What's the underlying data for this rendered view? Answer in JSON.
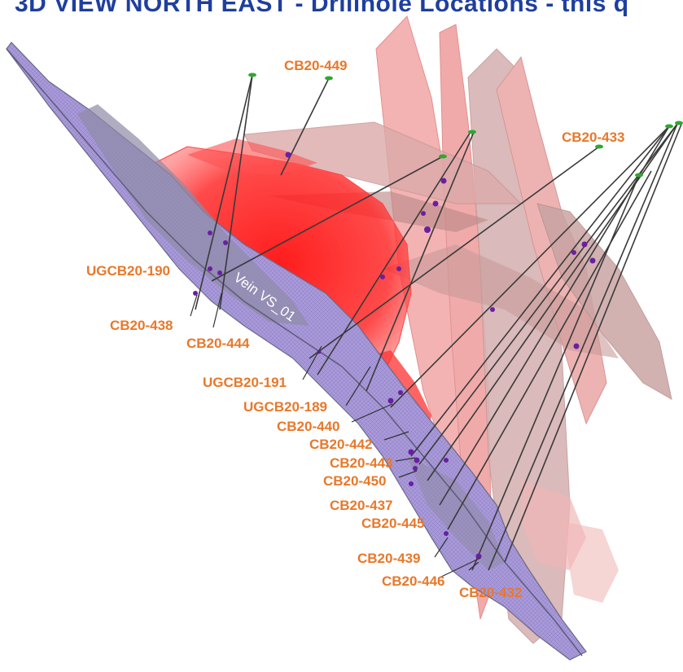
{
  "title": "3D VIEW NORTH EAST - Drillhole Locations - this q",
  "colors": {
    "title": "#1f3f9e",
    "label": "#e8782a",
    "vein_fill": "#a896d8",
    "vein_edge": "#6b6a86",
    "ore_body": "#ff1a1a",
    "faults": "#e88080",
    "hole_trace": "#3a3a3a",
    "intercept": "#6a1fa3",
    "collar": "#2ea82e"
  },
  "vein_label": "Vein VS_01",
  "holes": [
    {
      "id": "h449",
      "label": "CB20-449"
    },
    {
      "id": "h433",
      "label": "CB20-433"
    },
    {
      "id": "h190",
      "label": "UGCB20-190"
    },
    {
      "id": "h438",
      "label": "CB20-438"
    },
    {
      "id": "h444",
      "label": "CB20-444"
    },
    {
      "id": "h191",
      "label": "UGCB20-191"
    },
    {
      "id": "h189",
      "label": "UGCB20-189"
    },
    {
      "id": "h440",
      "label": "CB20-440"
    },
    {
      "id": "h442",
      "label": "CB20-442"
    },
    {
      "id": "h443",
      "label": "CB20-443"
    },
    {
      "id": "h450",
      "label": "CB20-450"
    },
    {
      "id": "h437",
      "label": "CB20-437"
    },
    {
      "id": "h445",
      "label": "CB20-445"
    },
    {
      "id": "h439",
      "label": "CB20-439"
    },
    {
      "id": "h446",
      "label": "CB20-446"
    },
    {
      "id": "h432",
      "label": "CB20-432"
    }
  ]
}
